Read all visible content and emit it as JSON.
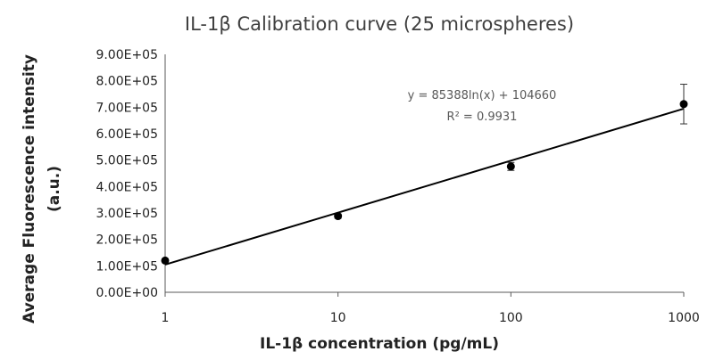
{
  "chart_data": {
    "type": "scatter",
    "title": "IL-1β Calibration curve (25 microspheres)",
    "xlabel": "IL-1β  concentration (pg/mL)",
    "ylabel_line1": "Average Fluorescence intensity",
    "ylabel_line2": "(a.u.)",
    "x_scale": "log",
    "xlim": [
      1,
      1000
    ],
    "ylim": [
      0,
      900000
    ],
    "x_ticks": [
      1,
      10,
      100,
      1000
    ],
    "x_tick_labels": [
      "1",
      "10",
      "100",
      "1000"
    ],
    "y_ticks": [
      0,
      100000,
      200000,
      300000,
      400000,
      500000,
      600000,
      700000,
      800000,
      900000
    ],
    "y_tick_labels": [
      "0.00E+00",
      "1.00E+05",
      "2.00E+05",
      "3.00E+05",
      "4.00E+05",
      "5.00E+05",
      "6.00E+05",
      "7.00E+05",
      "8.00E+05",
      "9.00E+05"
    ],
    "series": [
      {
        "x": [
          1,
          10,
          100,
          1000
        ],
        "y": [
          120000,
          288000,
          476000,
          712000
        ],
        "error": [
          5000,
          8000,
          15000,
          75000
        ],
        "color": "#000000"
      }
    ],
    "trendline": {
      "type": "logarithmic",
      "a": 85388,
      "b": 104660,
      "equation": "y = 85388ln(x) + 104660",
      "r_squared": "R² = 0.9931",
      "color": "#000000"
    },
    "grid": false,
    "legend": "none"
  }
}
